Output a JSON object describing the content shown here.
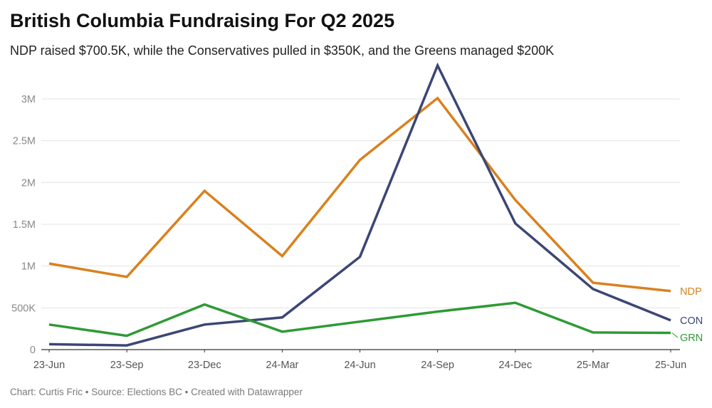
{
  "title": "British Columbia Fundraising For Q2 2025",
  "subtitle": "NDP raised $700.5K, while the Conservatives pulled in $350K, and the Greens managed $200K",
  "footer": {
    "author": "Chart: Curtis Fric",
    "source": "Source: Elections BC",
    "tool": "Created with Datawrapper",
    "separator": "•"
  },
  "chart_data": {
    "type": "line",
    "categories": [
      "23-Jun",
      "23-Sep",
      "23-Dec",
      "24-Mar",
      "24-Jun",
      "24-Sep",
      "24-Dec",
      "25-Mar",
      "25-Jun"
    ],
    "ylim": [
      0,
      3400000
    ],
    "yticks": [
      {
        "value": 0,
        "label": "0"
      },
      {
        "value": 500000,
        "label": "500K"
      },
      {
        "value": 1000000,
        "label": "1M"
      },
      {
        "value": 1500000,
        "label": "1.5M"
      },
      {
        "value": 2000000,
        "label": "2M"
      },
      {
        "value": 2500000,
        "label": "2.5M"
      },
      {
        "value": 3000000,
        "label": "3M"
      }
    ],
    "grid": true,
    "legend": "inline-right",
    "series": [
      {
        "name": "NDP",
        "color": "#d9811e",
        "values": [
          1030000,
          870000,
          1900000,
          1120000,
          2270000,
          3010000,
          1790000,
          800000,
          700500
        ]
      },
      {
        "name": "CON",
        "color": "#3b4675",
        "values": [
          65000,
          50000,
          300000,
          385000,
          1110000,
          3400000,
          1510000,
          725000,
          350000
        ]
      },
      {
        "name": "GRN",
        "color": "#2e9a35",
        "values": [
          300000,
          165000,
          540000,
          215000,
          335000,
          455000,
          560000,
          205000,
          200000
        ]
      }
    ]
  }
}
